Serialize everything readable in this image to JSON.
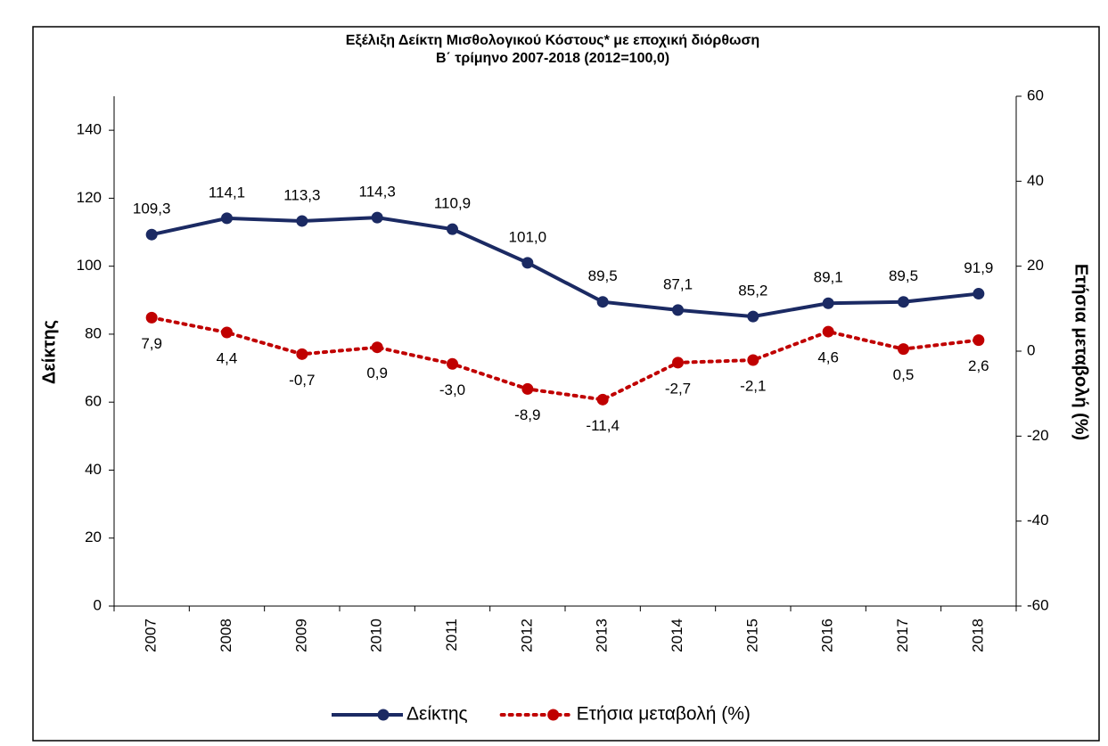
{
  "chart_data": {
    "type": "line",
    "title": "Εξέλιξη Δείκτη Μισθολογικού Κόστους* με εποχική διόρθωση",
    "subtitle": "Β΄ τρίμηνο 2007-2018 (2012=100,0)",
    "y_label": "Δείκτης",
    "y2_label": "Ετήσια μεταβολή (%)",
    "categories": [
      "2007",
      "2008",
      "2009",
      "2010",
      "2011",
      "2012",
      "2013",
      "2014",
      "2015",
      "2016",
      "2017",
      "2018"
    ],
    "series": [
      {
        "name": "Δείκτης",
        "color": "#1b2a63",
        "style": "solid",
        "values": [
          109.3,
          114.1,
          113.3,
          114.3,
          110.9,
          101.0,
          89.5,
          87.1,
          85.2,
          89.1,
          89.5,
          91.9
        ],
        "value_labels": [
          "109,3",
          "114,1",
          "113,3",
          "114,3",
          "110,9",
          "101,0",
          "89,5",
          "87,1",
          "85,2",
          "89,1",
          "89,5",
          "91,9"
        ]
      },
      {
        "name": "Ετήσια μεταβολή (%)",
        "color": "#c00000",
        "style": "dotted",
        "axis": "y2",
        "values": [
          7.9,
          4.4,
          -0.7,
          0.9,
          -3.0,
          -8.9,
          -11.4,
          -2.7,
          -2.1,
          4.6,
          0.5,
          2.6
        ],
        "value_labels": [
          "7,9",
          "4,4",
          "-0,7",
          "0,9",
          "-3,0",
          "-8,9",
          "-11,4",
          "-2,7",
          "-2,1",
          "4,6",
          "0,5",
          "2,6"
        ]
      }
    ],
    "ylim": [
      0,
      150
    ],
    "yticks": [
      0,
      20,
      40,
      60,
      80,
      100,
      120,
      140
    ],
    "y2lim": [
      -60,
      60
    ],
    "y2ticks": [
      -60,
      -40,
      -20,
      0,
      20,
      40,
      60
    ],
    "legend": "bottom"
  }
}
